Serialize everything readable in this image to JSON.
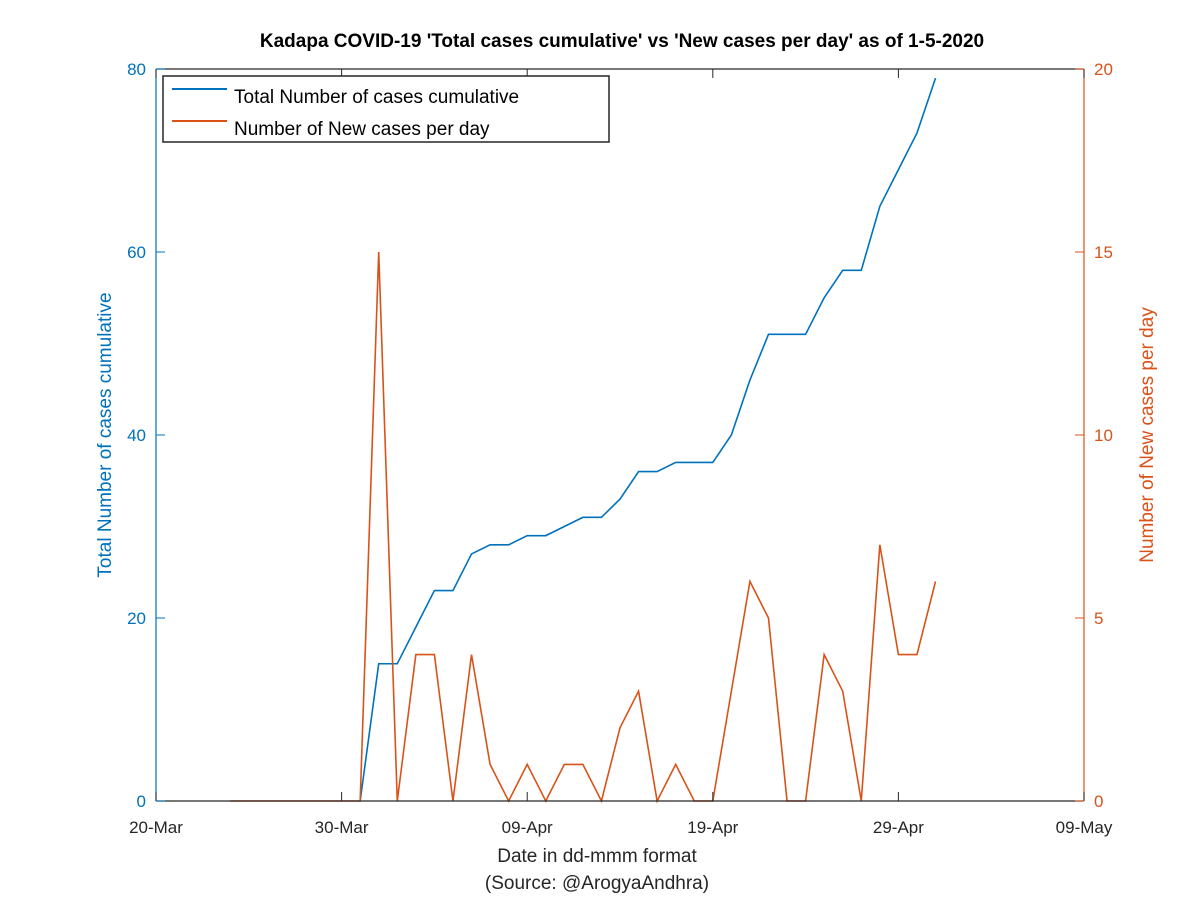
{
  "chart_data": {
    "type": "line",
    "title": "Kadapa COVID-19 'Total cases cumulative' vs 'New cases per day' as of 1-5-2020",
    "xlabel": "Date in dd-mmm format",
    "xlabel_note": "(Source: @ArogyaAndhra)",
    "ylabel_left": "Total Number of cases cumulative",
    "ylabel_right": "Number of New cases per day",
    "x_ticks": [
      "20-Mar",
      "30-Mar",
      "09-Apr",
      "19-Apr",
      "29-Apr",
      "09-May"
    ],
    "x_range": [
      "2020-03-20",
      "2020-05-09"
    ],
    "y_left_ticks": [
      0,
      20,
      40,
      60,
      80
    ],
    "y_left_range": [
      0,
      80
    ],
    "y_right_ticks": [
      0,
      5,
      10,
      15,
      20
    ],
    "y_right_range": [
      0,
      20
    ],
    "legend_position": "top-left",
    "colors": {
      "cumulative": "#0072BD",
      "daily": "#D95319",
      "axes": "#262626"
    },
    "series": [
      {
        "name": "Total Number of cases cumulative",
        "axis": "left",
        "color": "#0072BD",
        "x": [
          "2020-03-31",
          "2020-04-01",
          "2020-04-02",
          "2020-04-03",
          "2020-04-04",
          "2020-04-05",
          "2020-04-06",
          "2020-04-07",
          "2020-04-08",
          "2020-04-09",
          "2020-04-10",
          "2020-04-11",
          "2020-04-12",
          "2020-04-13",
          "2020-04-14",
          "2020-04-15",
          "2020-04-16",
          "2020-04-17",
          "2020-04-18",
          "2020-04-19",
          "2020-04-20",
          "2020-04-21",
          "2020-04-22",
          "2020-04-23",
          "2020-04-24",
          "2020-04-25",
          "2020-04-26",
          "2020-04-27",
          "2020-04-28",
          "2020-04-29",
          "2020-04-30",
          "2020-05-01"
        ],
        "values": [
          0,
          15,
          15,
          19,
          23,
          23,
          27,
          28,
          28,
          29,
          29,
          30,
          31,
          31,
          33,
          36,
          36,
          37,
          37,
          37,
          40,
          46,
          51,
          51,
          51,
          55,
          58,
          58,
          65,
          69,
          73,
          79
        ]
      },
      {
        "name": "Number of New cases per day",
        "axis": "right",
        "color": "#D95319",
        "x": [
          "2020-03-24",
          "2020-03-25",
          "2020-03-26",
          "2020-03-27",
          "2020-03-28",
          "2020-03-29",
          "2020-03-30",
          "2020-03-31",
          "2020-04-01",
          "2020-04-02",
          "2020-04-03",
          "2020-04-04",
          "2020-04-05",
          "2020-04-06",
          "2020-04-07",
          "2020-04-08",
          "2020-04-09",
          "2020-04-10",
          "2020-04-11",
          "2020-04-12",
          "2020-04-13",
          "2020-04-14",
          "2020-04-15",
          "2020-04-16",
          "2020-04-17",
          "2020-04-18",
          "2020-04-19",
          "2020-04-20",
          "2020-04-21",
          "2020-04-22",
          "2020-04-23",
          "2020-04-24",
          "2020-04-25",
          "2020-04-26",
          "2020-04-27",
          "2020-04-28",
          "2020-04-29",
          "2020-04-30",
          "2020-05-01"
        ],
        "values": [
          0,
          0,
          0,
          0,
          0,
          0,
          0,
          0,
          15,
          0,
          4,
          4,
          0,
          4,
          1,
          0,
          1,
          0,
          1,
          1,
          0,
          2,
          3,
          0,
          1,
          0,
          0,
          3,
          6,
          5,
          0,
          0,
          4,
          3,
          0,
          7,
          4,
          4,
          6
        ]
      }
    ]
  }
}
